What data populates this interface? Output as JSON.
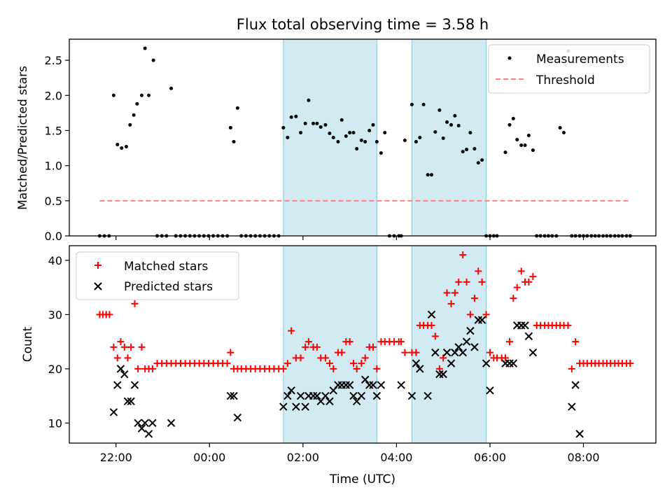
{
  "figure": {
    "title": "Flux total observing time = 3.58 h",
    "shaded_intervals_hours": [
      [
        1.58,
        3.58
      ],
      [
        4.33,
        5.92
      ]
    ],
    "shade_color": "#add8e6"
  },
  "chart_data": [
    {
      "type": "scatter",
      "panel": "top",
      "xlabel": "",
      "ylabel": "Matched/Predicted stars",
      "xlim_hours": [
        -3.0,
        9.55
      ],
      "ylim": [
        0,
        2.8
      ],
      "yticks": [
        "0.0",
        "0.5",
        "1.0",
        "1.5",
        "2.0",
        "2.5"
      ],
      "legend": {
        "position": "top-right",
        "entries": [
          "Measurements",
          "Threshold"
        ]
      },
      "series": [
        {
          "name": "Measurements",
          "marker": "dot",
          "color": "#000000",
          "x_hours": [
            -2.35,
            -2.25,
            -2.15,
            -2.05,
            -1.97,
            -1.88,
            -1.78,
            -1.7,
            -1.62,
            -1.55,
            -1.45,
            -1.38,
            -1.3,
            -1.2,
            -1.12,
            -1.02,
            -0.92,
            -0.82,
            -0.72,
            -0.62,
            -0.52,
            -0.42,
            -0.32,
            -0.22,
            -0.12,
            -0.02,
            0.08,
            0.18,
            0.28,
            0.38,
            0.45,
            0.52,
            0.6,
            0.68,
            0.78,
            0.88,
            0.98,
            1.08,
            1.18,
            1.28,
            1.38,
            1.48,
            1.58,
            1.67,
            1.75,
            1.85,
            1.95,
            2.05,
            2.12,
            2.22,
            2.3,
            2.38,
            2.48,
            2.57,
            2.65,
            2.75,
            2.83,
            2.92,
            3.0,
            3.08,
            3.15,
            3.25,
            3.33,
            3.42,
            3.5,
            3.58,
            3.67,
            3.75,
            3.85,
            3.95,
            4.05,
            4.1,
            4.18,
            4.33,
            4.42,
            4.5,
            4.58,
            4.67,
            4.75,
            4.83,
            4.92,
            5.0,
            5.08,
            5.17,
            5.25,
            5.33,
            5.42,
            5.5,
            5.58,
            5.67,
            5.75,
            5.83,
            5.92,
            6.0,
            6.08,
            6.15,
            6.33,
            6.42,
            6.5,
            6.58,
            6.67,
            6.75,
            6.83,
            6.92,
            7.0,
            7.08,
            7.17,
            7.25,
            7.33,
            7.42,
            7.5,
            7.58,
            7.67,
            7.75,
            7.83,
            7.92,
            8.0,
            8.08,
            8.17,
            8.25,
            8.33,
            8.42,
            8.5,
            8.58,
            8.67,
            8.75,
            8.83,
            8.92,
            9.0
          ],
          "y": [
            0,
            0,
            0,
            2.0,
            1.3,
            1.25,
            1.27,
            1.58,
            1.72,
            1.88,
            2.0,
            2.67,
            2.0,
            2.5,
            0,
            0,
            0,
            2.1,
            0,
            0,
            0,
            0,
            0,
            0,
            0,
            0,
            0,
            0,
            0,
            0,
            1.54,
            1.34,
            1.82,
            0,
            0,
            0,
            0,
            0,
            0,
            0,
            0,
            0,
            1.54,
            1.4,
            1.69,
            1.7,
            1.47,
            1.6,
            1.93,
            1.6,
            1.6,
            1.55,
            1.58,
            1.46,
            1.4,
            1.34,
            1.65,
            1.42,
            1.47,
            1.47,
            1.24,
            1.36,
            1.34,
            1.5,
            1.58,
            1.34,
            1.18,
            1.47,
            0,
            0,
            0,
            0,
            1.36,
            1.87,
            1.34,
            1.4,
            1.87,
            0.87,
            0.87,
            1.48,
            1.79,
            1.39,
            1.62,
            1.58,
            1.71,
            1.57,
            1.2,
            1.23,
            1.47,
            1.24,
            1.04,
            1.08,
            0,
            0,
            0,
            0,
            1.19,
            1.58,
            1.67,
            1.37,
            1.29,
            1.29,
            1.43,
            1.22,
            0,
            0,
            0,
            0,
            0,
            0,
            1.54,
            1.47,
            2.63,
            0,
            0,
            0,
            0,
            0,
            0,
            0,
            0,
            0,
            0,
            0,
            0,
            0,
            0,
            0,
            0
          ]
        },
        {
          "name": "Threshold",
          "style": "dashed",
          "color": "#ff7f7f",
          "x_hours": [
            -2.35,
            9.0
          ],
          "y": [
            0.5,
            0.5
          ]
        }
      ]
    },
    {
      "type": "scatter",
      "panel": "bottom",
      "xlabel": "Time (UTC)",
      "ylabel": "Count",
      "xlim_hours": [
        -3.0,
        9.55
      ],
      "ylim": [
        6.3,
        42.7
      ],
      "yticks": [
        "10",
        "20",
        "30",
        "40"
      ],
      "xticks": [
        "22:00",
        "00:00",
        "02:00",
        "04:00",
        "06:00",
        "08:00"
      ],
      "xticks_hours": [
        -2,
        0,
        2,
        4,
        6,
        8
      ],
      "legend": {
        "position": "top-left",
        "entries": [
          "Matched stars",
          "Predicted stars"
        ]
      },
      "series": [
        {
          "name": "Matched stars",
          "marker": "plus",
          "color": "#ff0000",
          "x_hours": [
            -2.35,
            -2.28,
            -2.21,
            -2.14,
            -2.05,
            -1.97,
            -1.9,
            -1.82,
            -1.75,
            -1.68,
            -1.6,
            -1.53,
            -1.45,
            -1.38,
            -1.3,
            -1.22,
            -1.12,
            -1.02,
            -0.92,
            -0.82,
            -0.72,
            -0.62,
            -0.52,
            -0.42,
            -0.32,
            -0.22,
            -0.12,
            -0.02,
            0.08,
            0.18,
            0.28,
            0.38,
            0.45,
            0.52,
            0.6,
            0.68,
            0.78,
            0.88,
            0.98,
            1.08,
            1.18,
            1.28,
            1.38,
            1.48,
            1.58,
            1.67,
            1.75,
            1.85,
            1.95,
            2.05,
            2.12,
            2.22,
            2.3,
            2.38,
            2.48,
            2.57,
            2.65,
            2.75,
            2.83,
            2.92,
            3.0,
            3.08,
            3.15,
            3.25,
            3.33,
            3.42,
            3.5,
            3.58,
            3.67,
            3.75,
            3.85,
            3.95,
            4.05,
            4.1,
            4.18,
            4.33,
            4.42,
            4.5,
            4.58,
            4.67,
            4.75,
            4.83,
            4.92,
            5.0,
            5.08,
            5.17,
            5.25,
            5.33,
            5.42,
            5.5,
            5.58,
            5.67,
            5.75,
            5.83,
            5.92,
            6.0,
            6.08,
            6.15,
            6.25,
            6.33,
            6.42,
            6.5,
            6.58,
            6.67,
            6.75,
            6.83,
            6.92,
            7.0,
            7.08,
            7.17,
            7.25,
            7.33,
            7.42,
            7.5,
            7.58,
            7.67,
            7.75,
            7.83,
            7.92,
            8.0,
            8.08,
            8.17,
            8.25,
            8.33,
            8.42,
            8.5,
            8.58,
            8.67,
            8.75,
            8.83,
            8.92,
            9.0
          ],
          "y": [
            30,
            30,
            30,
            30,
            24,
            22,
            25,
            24,
            22,
            24,
            32,
            20,
            24,
            20,
            20,
            20,
            21,
            21,
            21,
            21,
            21,
            21,
            21,
            21,
            21,
            21,
            21,
            21,
            21,
            21,
            21,
            21,
            23,
            20,
            20,
            20,
            20,
            20,
            20,
            20,
            20,
            20,
            20,
            20,
            20,
            21,
            27,
            22,
            22,
            24,
            25,
            24,
            24,
            22,
            22,
            21,
            20,
            23,
            23,
            25,
            25,
            21,
            20,
            21,
            22,
            24,
            24,
            20,
            25,
            25,
            25,
            25,
            25,
            25,
            23,
            23,
            23,
            28,
            28,
            28,
            28,
            26,
            20,
            22,
            34,
            32,
            34,
            36,
            41,
            36,
            30,
            33,
            38,
            36,
            30,
            23,
            22,
            22,
            22,
            22,
            25,
            33,
            35,
            38,
            36,
            36,
            37,
            28,
            28,
            28,
            28,
            28,
            28,
            28,
            28,
            28,
            20,
            25,
            21,
            21,
            21,
            21,
            21,
            21,
            21,
            21,
            21,
            21,
            21,
            21,
            21,
            21
          ]
        },
        {
          "name": "Predicted stars",
          "marker": "x",
          "color": "#000000",
          "x_hours": [
            -2.05,
            -1.97,
            -1.9,
            -1.82,
            -1.75,
            -1.68,
            -1.6,
            -1.53,
            -1.45,
            -1.38,
            -1.3,
            -1.22,
            -0.82,
            0.45,
            0.52,
            0.6,
            1.58,
            1.67,
            1.75,
            1.85,
            1.95,
            2.05,
            2.12,
            2.22,
            2.3,
            2.38,
            2.48,
            2.57,
            2.65,
            2.75,
            2.83,
            2.92,
            3.0,
            3.08,
            3.15,
            3.25,
            3.33,
            3.42,
            3.5,
            3.58,
            3.67,
            4.1,
            4.33,
            4.42,
            4.5,
            4.67,
            4.75,
            4.83,
            4.92,
            5.0,
            5.08,
            5.17,
            5.25,
            5.33,
            5.42,
            5.5,
            5.58,
            5.67,
            5.75,
            5.83,
            5.92,
            6.0,
            6.33,
            6.42,
            6.5,
            6.58,
            6.67,
            6.75,
            6.83,
            6.92,
            7.75,
            7.83,
            7.92
          ],
          "y": [
            12,
            17,
            20,
            19,
            14,
            14,
            17,
            10,
            9,
            10,
            8,
            10,
            10,
            15,
            15,
            11,
            13,
            15,
            16,
            13,
            15,
            13,
            15,
            15,
            15,
            14,
            15,
            14,
            16,
            17,
            17,
            17,
            17,
            15,
            14,
            15,
            18,
            17,
            17,
            15,
            17,
            17,
            15,
            21,
            20,
            15,
            30,
            23,
            19,
            19,
            23,
            21,
            23,
            24,
            23,
            25,
            27,
            24,
            29,
            29,
            21,
            16,
            21,
            21,
            21,
            28,
            28,
            28,
            26,
            23,
            13,
            17,
            8
          ]
        }
      ]
    }
  ]
}
